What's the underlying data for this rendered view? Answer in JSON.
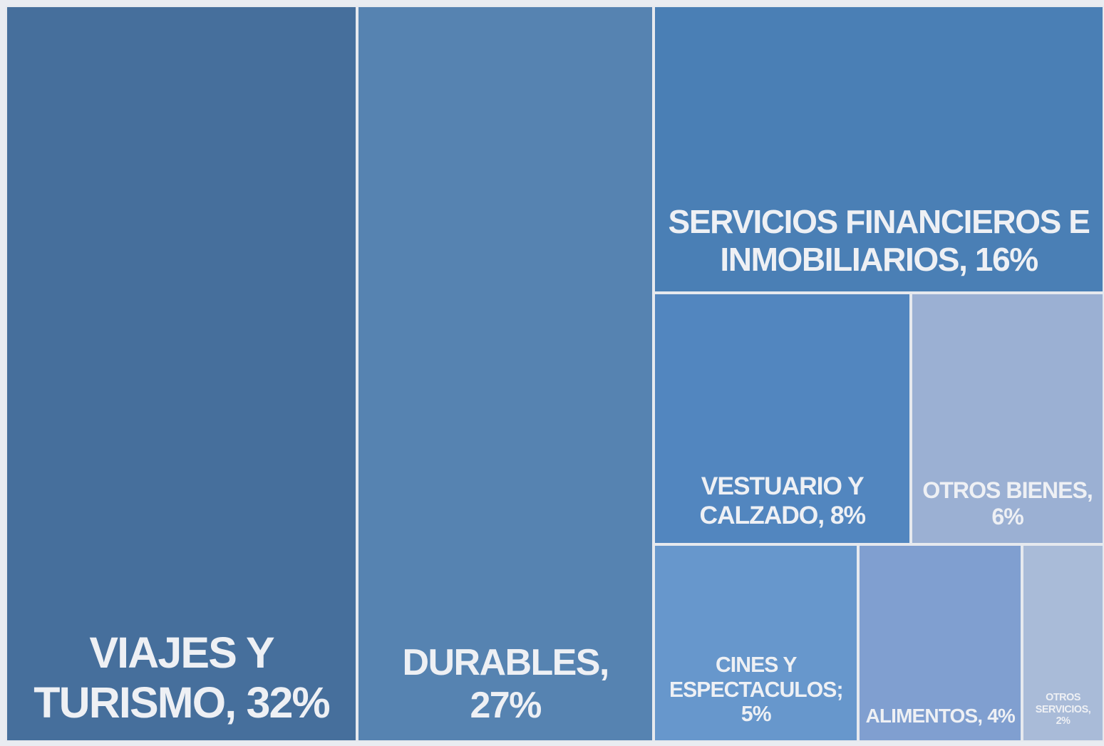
{
  "chart_data": {
    "type": "treemap",
    "categories": [
      "VIAJES Y TURISMO,",
      "DURABLES,",
      "SERVICIOS FINANCIEROS E INMOBILIARIOS,",
      "VESTUARIO Y CALZADO,",
      "OTROS BIENES,",
      "CINES Y ESPECTACULOS;",
      "ALIMENTOS,",
      "OTROS SERVICIOS,"
    ],
    "values": [
      32,
      27,
      16,
      8,
      6,
      5,
      4,
      2
    ],
    "value_labels": [
      "32%",
      "27%",
      "16%",
      "8%",
      "6%",
      "5%",
      "4%",
      "2%"
    ],
    "colors": [
      "#466f9c",
      "#5683b1",
      "#4a7fb5",
      "#5286bf",
      "#9bb0d3",
      "#6797cc",
      "#809fd0",
      "#a9bbd8"
    ]
  }
}
